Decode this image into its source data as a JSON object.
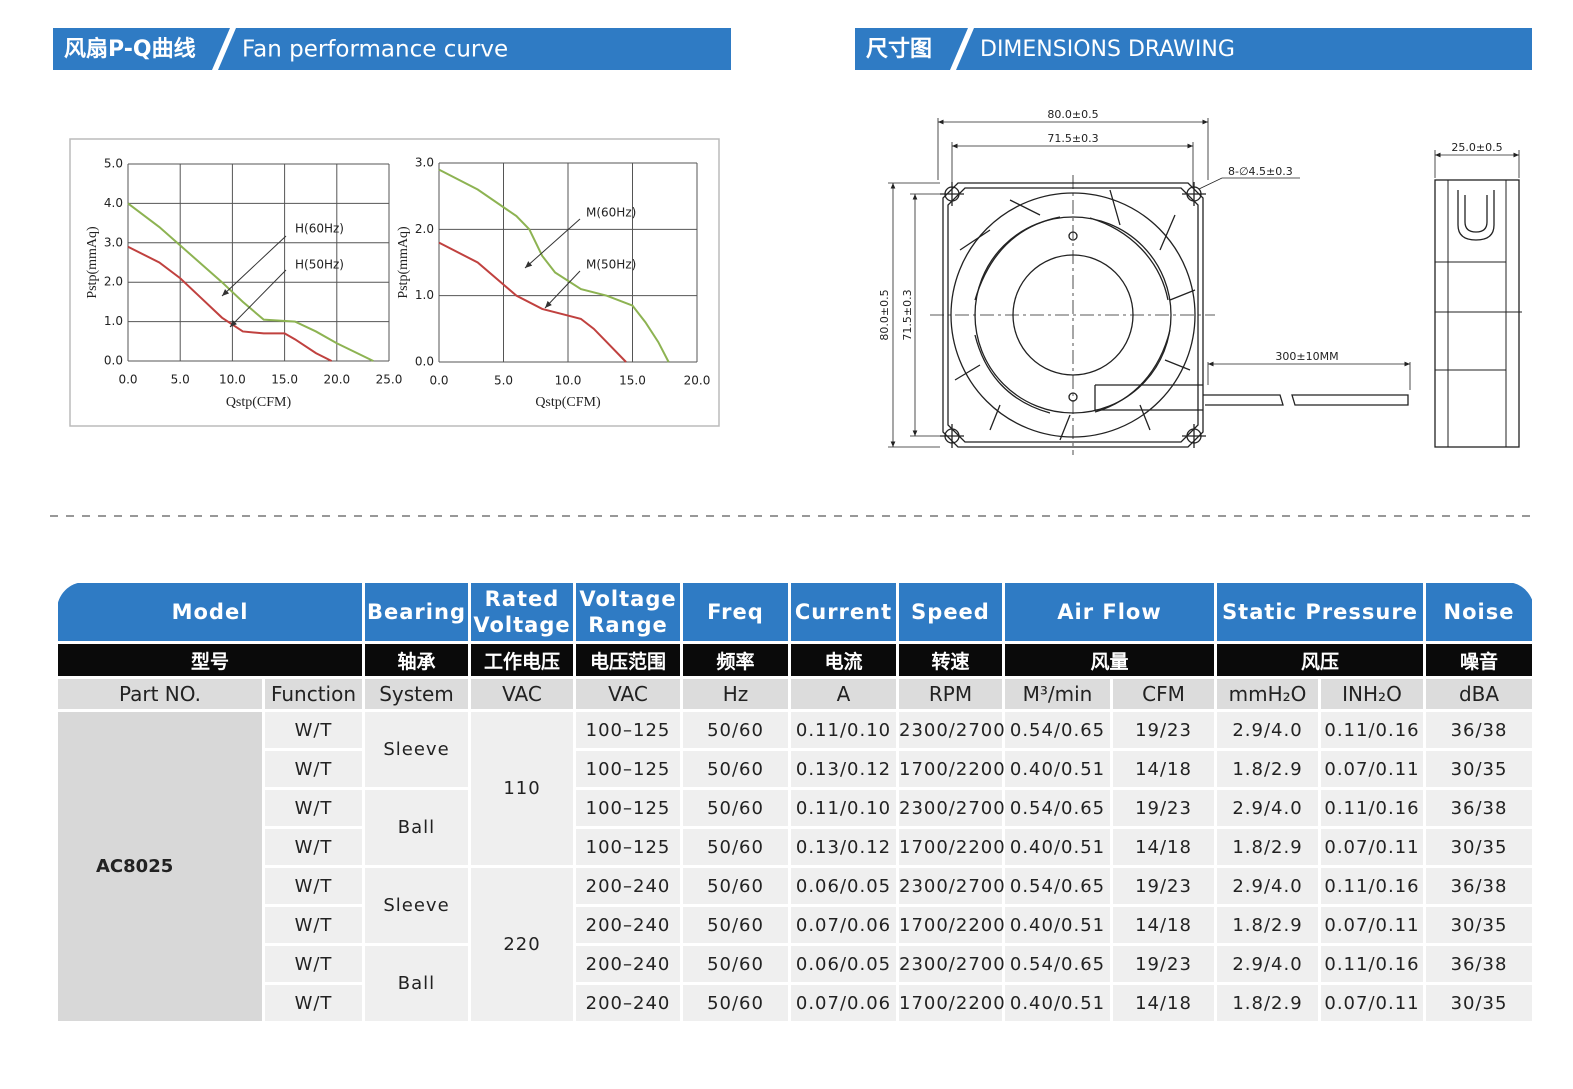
{
  "pq_section": {
    "title_cn": "风扇P-Q曲线",
    "title_en": "Fan performance curve"
  },
  "dim_section": {
    "title_cn": "尺寸图",
    "title_en": "DIMENSIONS DRAWING"
  },
  "chart_data": [
    {
      "type": "line",
      "x_label": "Qstp(CFM)",
      "y_label": "Pstp(mmAq)",
      "xlim": [
        0,
        25
      ],
      "ylim": [
        0,
        5
      ],
      "grid": true,
      "xticks": [
        {
          "value": 0,
          "label": "0.0"
        },
        {
          "value": 5,
          "label": "5.0"
        },
        {
          "value": 10,
          "label": "10.0"
        },
        {
          "value": 15,
          "label": "15.0"
        },
        {
          "value": 20,
          "label": "20.0"
        },
        {
          "value": 25,
          "label": "25.0"
        }
      ],
      "yticks": [
        {
          "value": 0,
          "label": "0.0"
        },
        {
          "value": 1,
          "label": "1.0"
        },
        {
          "value": 2,
          "label": "2.0"
        },
        {
          "value": 3,
          "label": "3.0"
        },
        {
          "value": 4,
          "label": "4.0"
        },
        {
          "value": 5,
          "label": "5.0"
        }
      ],
      "series": [
        {
          "name": "H(60Hz)",
          "color": "#8db352",
          "x": [
            0,
            3,
            6,
            9,
            11,
            13,
            16,
            18,
            20,
            23.5
          ],
          "values": [
            4.0,
            3.4,
            2.7,
            2.0,
            1.5,
            1.05,
            1.0,
            0.75,
            0.45,
            0
          ]
        },
        {
          "name": "H(50Hz)",
          "color": "#c0413f",
          "x": [
            0,
            3,
            5,
            7,
            9,
            11,
            13,
            15,
            16,
            18,
            19.5
          ],
          "values": [
            2.9,
            2.5,
            2.1,
            1.6,
            1.1,
            0.75,
            0.7,
            0.7,
            0.55,
            0.2,
            0
          ]
        }
      ]
    },
    {
      "type": "line",
      "x_label": "Qstp(CFM)",
      "y_label": "Pstp(mmAq)",
      "xlim": [
        0,
        20
      ],
      "ylim": [
        0,
        3
      ],
      "grid": true,
      "xticks": [
        {
          "value": 0,
          "label": "0.0"
        },
        {
          "value": 5,
          "label": "5.0"
        },
        {
          "value": 10,
          "label": "10.0"
        },
        {
          "value": 15,
          "label": "15.0"
        },
        {
          "value": 20,
          "label": "20.0"
        }
      ],
      "yticks": [
        {
          "value": 0,
          "label": "0.0"
        },
        {
          "value": 1,
          "label": "1.0"
        },
        {
          "value": 2,
          "label": "2.0"
        },
        {
          "value": 3,
          "label": "3.0"
        }
      ],
      "series": [
        {
          "name": "M(60Hz)",
          "color": "#8db352",
          "x": [
            0,
            3,
            6,
            7,
            8,
            9,
            11,
            13,
            15,
            16,
            17,
            17.8
          ],
          "values": [
            2.9,
            2.6,
            2.2,
            2.0,
            1.6,
            1.35,
            1.1,
            1.0,
            0.85,
            0.6,
            0.3,
            0
          ]
        },
        {
          "name": "M(50Hz)",
          "color": "#c0413f",
          "x": [
            0,
            3,
            6,
            8,
            10,
            11,
            12,
            13,
            14.5
          ],
          "values": [
            1.8,
            1.5,
            1.0,
            0.8,
            0.7,
            0.65,
            0.5,
            0.3,
            0
          ]
        }
      ]
    }
  ],
  "dimensions": {
    "width_outer": "80.0±0.5",
    "width_holes": "71.5±0.3",
    "holes": "8-∅4.5±0.3",
    "height_outer": "80.0±0.5",
    "height_holes": "71.5±0.3",
    "cable": "300±10MM",
    "depth": "25.0±0.5"
  },
  "table": {
    "header_en": [
      "Model",
      "Bearing",
      "Rated Voltage",
      "Voltage Range",
      "Freq",
      "Current",
      "Speed",
      "Air Flow",
      "Static Pressure",
      "Noise"
    ],
    "header_cn": [
      "型号",
      "轴承",
      "工作电压",
      "电压范围",
      "频率",
      "电流",
      "转速",
      "风量",
      "风压",
      "噪音"
    ],
    "units": [
      "Part NO.",
      "Function",
      "System",
      "VAC",
      "VAC",
      "Hz",
      "A",
      "RPM",
      "M³/min",
      "CFM",
      "mmH₂O",
      "INH₂O",
      "dBA"
    ],
    "model": "AC8025",
    "bearing": [
      "Sleeve",
      "Ball",
      "Sleeve",
      "Ball"
    ],
    "rated": [
      "110",
      "220"
    ],
    "rows": [
      [
        "W/T",
        "100–125",
        "50/60",
        "0.11/0.10",
        "2300/2700",
        "0.54/0.65",
        "19/23",
        "2.9/4.0",
        "0.11/0.16",
        "36/38"
      ],
      [
        "W/T",
        "100–125",
        "50/60",
        "0.13/0.12",
        "1700/2200",
        "0.40/0.51",
        "14/18",
        "1.8/2.9",
        "0.07/0.11",
        "30/35"
      ],
      [
        "W/T",
        "100–125",
        "50/60",
        "0.11/0.10",
        "2300/2700",
        "0.54/0.65",
        "19/23",
        "2.9/4.0",
        "0.11/0.16",
        "36/38"
      ],
      [
        "W/T",
        "100–125",
        "50/60",
        "0.13/0.12",
        "1700/2200",
        "0.40/0.51",
        "14/18",
        "1.8/2.9",
        "0.07/0.11",
        "30/35"
      ],
      [
        "W/T",
        "200–240",
        "50/60",
        "0.06/0.05",
        "2300/2700",
        "0.54/0.65",
        "19/23",
        "2.9/4.0",
        "0.11/0.16",
        "36/38"
      ],
      [
        "W/T",
        "200–240",
        "50/60",
        "0.07/0.06",
        "1700/2200",
        "0.40/0.51",
        "14/18",
        "1.8/2.9",
        "0.07/0.11",
        "30/35"
      ],
      [
        "W/T",
        "200–240",
        "50/60",
        "0.06/0.05",
        "2300/2700",
        "0.54/0.65",
        "19/23",
        "2.9/4.0",
        "0.11/0.16",
        "36/38"
      ],
      [
        "W/T",
        "200–240",
        "50/60",
        "0.07/0.06",
        "1700/2200",
        "0.40/0.51",
        "14/18",
        "1.8/2.9",
        "0.07/0.11",
        "30/35"
      ]
    ]
  }
}
